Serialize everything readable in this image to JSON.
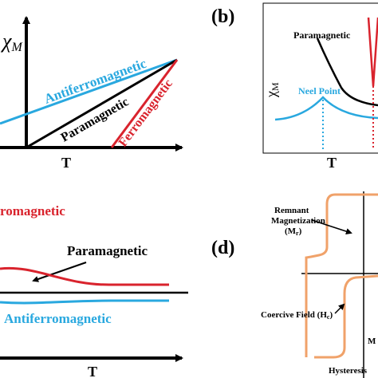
{
  "panel_a": {
    "ylabel": "χ",
    "ylabel_sub": "M",
    "xlabel": "T",
    "curves": {
      "antiferro": "Antiferromagnetic",
      "para": "Paramagnetic",
      "ferro": "Ferromagnetic"
    }
  },
  "panel_b": {
    "letter": "(b)",
    "ylabel": "χ",
    "ylabel_sub": "M",
    "xlabel": "T",
    "para_label": "Paramagnetic",
    "neel_label": "Neel Point"
  },
  "panel_c": {
    "ferro_label": "romagnetic",
    "para_label": "Paramagnetic",
    "antiferro_label": "Antiferromagnetic",
    "xlabel": "T"
  },
  "panel_d": {
    "letter": "(d)",
    "remnant_line1": "Remnant",
    "remnant_line2": "Magnetization",
    "remnant_line3": "(M",
    "remnant_sub": "r",
    "remnant_close": ")",
    "coercive_label": "Coercive Field (H",
    "coercive_sub": "c",
    "coercive_close": ")",
    "hysteresis_label": "Hysteresis",
    "axis_label": "M"
  },
  "colors": {
    "antiferro": "#29a8df",
    "para": "#000000",
    "ferro": "#d9232d",
    "hysteresis": "#f0a26a"
  }
}
